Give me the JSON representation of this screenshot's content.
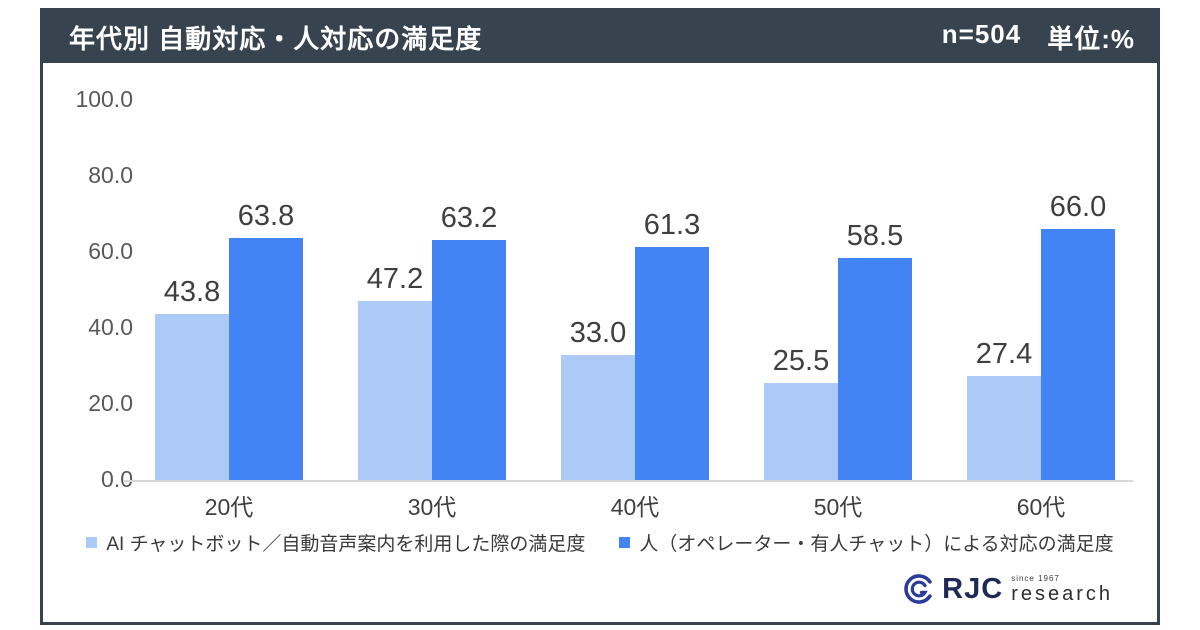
{
  "header": {
    "title": "年代別 自動対応・人対応の満足度",
    "sample_size": "n=504",
    "unit_label": "単位:%"
  },
  "chart_data": {
    "type": "bar",
    "title": "年代別 自動対応・人対応の満足度",
    "categories": [
      "20代",
      "30代",
      "40代",
      "50代",
      "60代"
    ],
    "series": [
      {
        "name": "AI チャットボット／自動音声案内を利用した際の満足度",
        "color": "#ADCAF7",
        "values": [
          43.8,
          47.2,
          33.0,
          25.5,
          27.4
        ]
      },
      {
        "name": "人（オペレーター・有人チャット）による対応の満足度",
        "color": "#4284F4",
        "values": [
          63.8,
          63.2,
          61.3,
          58.5,
          66.0
        ]
      }
    ],
    "xlabel": "",
    "ylabel": "",
    "ylim": [
      0,
      100
    ],
    "ytick_labels": [
      "100.0",
      "80.0",
      "60.0",
      "40.0",
      "20.0",
      "0.0"
    ],
    "grid": false,
    "legend_position": "bottom",
    "value_labels": true,
    "n": 504,
    "unit": "%"
  },
  "logo": {
    "brand": "RJC",
    "since": "since 1967",
    "word": "research"
  },
  "colors": {
    "header_bg": "#37434E",
    "card_border": "#37434E",
    "series1": "#ADCAF7",
    "series2": "#4284F4",
    "axis_line": "#D9D9D9",
    "value_label": "#3F3F3F",
    "tick_label": "#595959",
    "logo_mark": "#2B3A9B"
  }
}
